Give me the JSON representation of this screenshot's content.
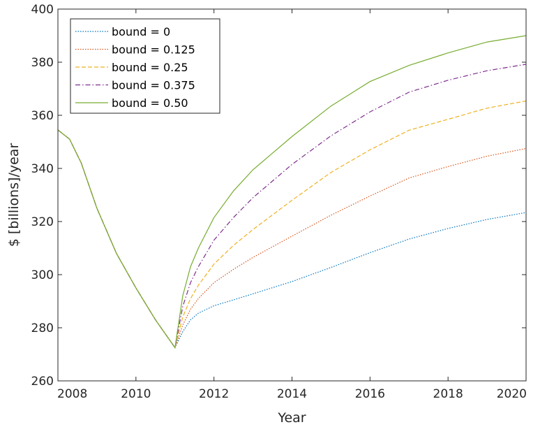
{
  "chart_data": {
    "type": "line",
    "xlabel": "Year",
    "ylabel": "$ [billions]/year",
    "xlim": [
      2008,
      2020
    ],
    "ylim": [
      260,
      400
    ],
    "xticks": [
      2008,
      2010,
      2012,
      2014,
      2016,
      2018,
      2020
    ],
    "yticks": [
      260,
      280,
      300,
      320,
      340,
      360,
      380,
      400
    ],
    "grid": false,
    "legend_position": "top-left",
    "series": [
      {
        "name": "bound = 0",
        "color": "#0072BD",
        "dash": "dotted",
        "x": [
          2008,
          2008.3,
          2008.6,
          2009.0,
          2009.5,
          2010.0,
          2010.5,
          2011.0,
          2011.2,
          2011.4,
          2011.6,
          2012.0,
          2012.5,
          2013.0,
          2014.0,
          2015.0,
          2016.0,
          2017.0,
          2018.0,
          2019.0,
          2020.0
        ],
        "y": [
          354.5,
          351,
          342,
          325,
          308,
          295,
          283,
          272.5,
          278.5,
          283,
          285.5,
          288.3,
          290.5,
          292.8,
          297.4,
          302.7,
          308.3,
          313.4,
          317.4,
          320.8,
          323.4
        ]
      },
      {
        "name": "bound = 0.125",
        "color": "#D95319",
        "dash": "dotted",
        "x": [
          2008,
          2008.3,
          2008.6,
          2009.0,
          2009.5,
          2010.0,
          2010.5,
          2011.0,
          2011.2,
          2011.4,
          2011.6,
          2012.0,
          2012.5,
          2013.0,
          2014.0,
          2015.0,
          2016.0,
          2017.0,
          2018.0,
          2019.0,
          2020.0
        ],
        "y": [
          354.5,
          351,
          342,
          325,
          308,
          295,
          283,
          272.5,
          281,
          287,
          291,
          297,
          302,
          306.5,
          314.5,
          322.4,
          329.6,
          336.4,
          340.7,
          344.6,
          347.5
        ]
      },
      {
        "name": "bound = 0.25",
        "color": "#EDB120",
        "dash": "dashed",
        "x": [
          2008,
          2008.3,
          2008.6,
          2009.0,
          2009.5,
          2010.0,
          2010.5,
          2011.0,
          2011.2,
          2011.4,
          2011.6,
          2012.0,
          2012.5,
          2013.0,
          2014.0,
          2015.0,
          2016.0,
          2017.0,
          2018.0,
          2019.0,
          2020.0
        ],
        "y": [
          354.5,
          351,
          342,
          325,
          308,
          295,
          283,
          272.5,
          284,
          291,
          296,
          304,
          311,
          317,
          328,
          338.5,
          347,
          354.4,
          358.5,
          362.7,
          365.4
        ]
      },
      {
        "name": "bound = 0.375",
        "color": "#7E2F8E",
        "dash": "dashdot",
        "x": [
          2008,
          2008.3,
          2008.6,
          2009.0,
          2009.5,
          2010.0,
          2010.5,
          2011.0,
          2011.2,
          2011.4,
          2011.6,
          2012.0,
          2012.5,
          2013.0,
          2014.0,
          2015.0,
          2016.0,
          2017.0,
          2018.0,
          2019.0,
          2020.0
        ],
        "y": [
          354.5,
          351,
          342,
          325,
          308,
          295,
          283,
          272.5,
          288,
          297,
          303,
          313,
          321.5,
          329,
          341.5,
          352.3,
          361.3,
          368.7,
          373.2,
          376.8,
          379.2
        ]
      },
      {
        "name": "bound = 0.50",
        "color": "#77AC30",
        "dash": "solid",
        "x": [
          2008,
          2008.3,
          2008.6,
          2009.0,
          2009.5,
          2010.0,
          2010.5,
          2011.0,
          2011.2,
          2011.4,
          2011.6,
          2012.0,
          2012.5,
          2013.0,
          2014.0,
          2015.0,
          2016.0,
          2017.0,
          2018.0,
          2019.0,
          2020.0
        ],
        "y": [
          354.5,
          351,
          342,
          325,
          308,
          295,
          283,
          272.5,
          292,
          303,
          310,
          321.5,
          331.5,
          339.5,
          352,
          363.5,
          372.7,
          378.8,
          383.5,
          387.6,
          390
        ]
      }
    ]
  }
}
